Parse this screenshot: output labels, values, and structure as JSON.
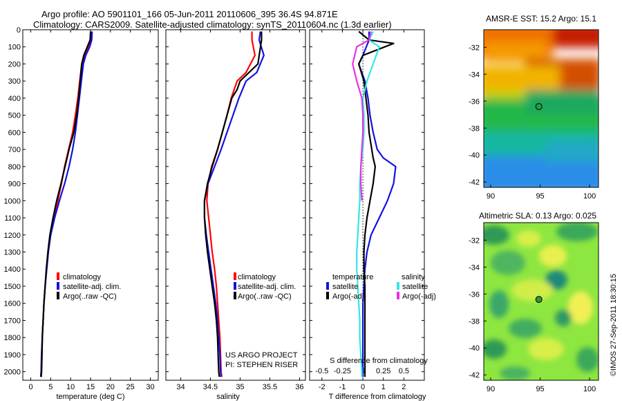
{
  "header": {
    "line1": "Argo profile: AO 5901101_166 05-Jun-2011 20110606_395 36.4S 94.871E",
    "line2": "Climatology: CARS2009. Satellite-adjusted climatology: synTS_20110604.nc (1.3d earlier)"
  },
  "colors": {
    "climatology": "#ff0000",
    "satellite": "#1111dd",
    "argo": "#000000",
    "sal_satellite": "#33e6e6",
    "sal_argo": "#e830e0"
  },
  "side_text": "©IMOS 27-Sep-2011 18:30:15",
  "credit": {
    "line1": "US ARGO PROJECT",
    "line2": "PI: STEPHEN RISER"
  },
  "chart_data": [
    {
      "type": "line",
      "name": "temperature-profile",
      "xlabel": "temperature (deg C)",
      "xlim": [
        -2,
        32
      ],
      "ylim": [
        0,
        2050
      ],
      "xticks": [
        "0",
        "5",
        "10",
        "15",
        "20",
        "25",
        "30"
      ],
      "xtick_values": [
        0,
        5,
        10,
        15,
        20,
        25,
        30
      ],
      "yticks": [
        "0",
        "100",
        "200",
        "300",
        "400",
        "500",
        "600",
        "700",
        "800",
        "900",
        "1000",
        "1100",
        "1200",
        "1300",
        "1400",
        "1500",
        "1600",
        "1700",
        "1800",
        "1900",
        "2000"
      ],
      "ytick_values": [
        0,
        100,
        200,
        300,
        400,
        500,
        600,
        700,
        800,
        900,
        1000,
        1100,
        1200,
        1300,
        1400,
        1500,
        1600,
        1700,
        1800,
        1900,
        2000
      ],
      "legend": [
        "climatology",
        "satellite-adj. clim.",
        "Argo(..raw -QC)"
      ],
      "series": [
        {
          "name": "climatology",
          "color": "#ff0000",
          "x": [
            15.3,
            15.2,
            14.6,
            13.5,
            12.8,
            12.3,
            11.8,
            11.2,
            10.5,
            9.5,
            8.5,
            7.7,
            6.8,
            5.8,
            4.9,
            4.4,
            4.0,
            3.6,
            3.3,
            3.1,
            2.9,
            2.8,
            2.7,
            2.6
          ],
          "y": [
            10,
            60,
            100,
            150,
            200,
            300,
            400,
            500,
            600,
            700,
            800,
            900,
            1000,
            1100,
            1200,
            1300,
            1400,
            1500,
            1600,
            1700,
            1800,
            1900,
            2000,
            2030
          ]
        },
        {
          "name": "satellite-adj. clim.",
          "color": "#1111dd",
          "x": [
            15.4,
            15.3,
            14.8,
            13.8,
            13.2,
            12.7,
            12.2,
            11.7,
            11.2,
            10.5,
            9.6,
            8.5,
            7.2,
            6.0,
            5.0,
            4.4,
            4.0,
            3.6,
            3.3,
            3.1,
            2.9,
            2.7,
            2.6,
            2.5
          ],
          "y": [
            10,
            60,
            100,
            150,
            200,
            300,
            400,
            500,
            600,
            700,
            800,
            900,
            1000,
            1100,
            1200,
            1300,
            1400,
            1500,
            1600,
            1700,
            1800,
            1900,
            2000,
            2030
          ]
        },
        {
          "name": "Argo(..raw -QC)",
          "color": "#000000",
          "x": [
            15.0,
            14.9,
            14.2,
            13.3,
            12.8,
            12.4,
            12.0,
            11.5,
            10.8,
            9.6,
            8.6,
            7.6,
            6.5,
            5.6,
            4.8,
            4.3,
            3.9,
            3.6,
            3.3,
            3.1,
            2.9,
            2.8,
            2.7,
            2.6
          ],
          "y": [
            10,
            60,
            100,
            150,
            200,
            300,
            400,
            500,
            600,
            700,
            800,
            900,
            1000,
            1100,
            1200,
            1300,
            1400,
            1500,
            1600,
            1700,
            1800,
            1900,
            2000,
            2030
          ]
        }
      ]
    },
    {
      "type": "line",
      "name": "salinity-profile",
      "xlabel": "salinity",
      "xlim": [
        33.75,
        36.1
      ],
      "ylim": [
        0,
        2050
      ],
      "xticks": [
        "34",
        "34.5",
        "35",
        "35.5",
        "36"
      ],
      "xtick_values": [
        34,
        34.5,
        35,
        35.5,
        36
      ],
      "legend": [
        "climatology",
        "satellite-adj. clim.",
        "Argo(..raw -QC)"
      ],
      "series": [
        {
          "name": "climatology",
          "color": "#ff0000",
          "x": [
            35.2,
            35.2,
            35.25,
            35.1,
            34.95,
            34.85,
            34.78,
            34.7,
            34.62,
            34.52,
            34.46,
            34.44,
            34.47,
            34.5,
            34.53,
            34.57,
            34.6,
            34.62,
            34.64,
            34.66,
            34.67,
            34.68,
            34.69
          ],
          "y": [
            10,
            60,
            150,
            250,
            300,
            400,
            500,
            600,
            700,
            800,
            900,
            1000,
            1100,
            1200,
            1300,
            1400,
            1500,
            1600,
            1700,
            1800,
            1900,
            2000,
            2030
          ]
        },
        {
          "name": "satellite-adj. clim.",
          "color": "#1111dd",
          "x": [
            35.34,
            35.32,
            35.4,
            35.28,
            35.1,
            34.98,
            34.88,
            34.78,
            34.68,
            34.57,
            34.46,
            34.4,
            34.4,
            34.43,
            34.47,
            34.51,
            34.55,
            34.59,
            34.62,
            34.64,
            34.66,
            34.67,
            34.68
          ],
          "y": [
            10,
            60,
            150,
            250,
            300,
            400,
            500,
            600,
            700,
            800,
            900,
            1000,
            1100,
            1200,
            1300,
            1400,
            1500,
            1600,
            1700,
            1800,
            1900,
            2000,
            2030
          ]
        },
        {
          "name": "Argo(..raw -QC)",
          "color": "#000000",
          "x": [
            35.36,
            35.36,
            35.3,
            35.0,
            34.95,
            34.86,
            34.78,
            34.7,
            34.62,
            34.53,
            34.45,
            34.4,
            34.4,
            34.42,
            34.45,
            34.49,
            34.53,
            34.57,
            34.6,
            34.62,
            34.63,
            34.64,
            34.65
          ],
          "y": [
            10,
            60,
            200,
            300,
            350,
            400,
            500,
            600,
            700,
            800,
            900,
            1000,
            1100,
            1200,
            1300,
            1400,
            1500,
            1600,
            1700,
            1800,
            1900,
            2000,
            2030
          ]
        }
      ]
    },
    {
      "type": "line",
      "name": "difference-profile",
      "xlabel": "T difference from climatology",
      "xlabel2": "S difference from climatology",
      "xlim": [
        -2.6,
        3.0
      ],
      "ylim": [
        0,
        2050
      ],
      "xticks": [
        "-2",
        "-1",
        "0",
        "1",
        "2"
      ],
      "xtick_values": [
        -2,
        -1,
        0,
        1,
        2
      ],
      "xticks2": [
        "-0.5",
        "-0.25",
        "0",
        "0.25",
        "0.5"
      ],
      "xtick2_values": [
        -2,
        -1,
        0,
        1,
        2
      ],
      "legend_titles": [
        "temperature",
        "salinity"
      ],
      "legend": [
        "satellite",
        "Argo(-adj)",
        "satellite",
        "Argo(-adj)"
      ],
      "series": [
        {
          "name": "temperature satellite",
          "color": "#1111dd",
          "x": [
            0.3,
            0.3,
            0.0,
            -0.2,
            0.1,
            0.25,
            0.35,
            0.5,
            0.7,
            1.0,
            1.6,
            1.5,
            1.2,
            0.8,
            0.4,
            0.2,
            0.1,
            0.05,
            0.0,
            0.0,
            0.0,
            0.0,
            0.0
          ],
          "y": [
            10,
            60,
            150,
            200,
            300,
            400,
            500,
            600,
            700,
            750,
            800,
            900,
            1000,
            1100,
            1200,
            1300,
            1400,
            1500,
            1600,
            1700,
            1800,
            1900,
            2030
          ]
        },
        {
          "name": "temperature Argo(-adj)",
          "color": "#000000",
          "x": [
            -0.2,
            0.3,
            1.5,
            0.0,
            -0.2,
            0.05,
            0.15,
            0.25,
            0.3,
            0.5,
            0.6,
            0.5,
            0.35,
            0.2,
            0.1,
            0.05,
            0.05,
            0.1,
            0.1,
            0.1,
            0.1,
            0.1,
            0.1
          ],
          "y": [
            10,
            60,
            80,
            150,
            200,
            300,
            400,
            500,
            600,
            750,
            800,
            900,
            1000,
            1100,
            1200,
            1300,
            1400,
            1500,
            1600,
            1700,
            1800,
            1900,
            2030
          ]
        },
        {
          "name": "salinity satellite",
          "color": "#33e6e6",
          "x": [
            0.5,
            0.3,
            0.8,
            0.5,
            0.2,
            0.0,
            0.05,
            0.05,
            0.0,
            -0.1,
            -0.15,
            -0.15,
            -0.2,
            -0.25,
            -0.3,
            -0.3,
            -0.25,
            -0.2,
            -0.15,
            -0.15,
            -0.1,
            -0.05,
            -0.05
          ],
          "y": [
            10,
            60,
            100,
            200,
            300,
            400,
            500,
            600,
            700,
            800,
            900,
            1000,
            1100,
            1200,
            1300,
            1400,
            1500,
            1600,
            1700,
            1800,
            1900,
            2000,
            2030
          ]
        },
        {
          "name": "salinity Argo(-adj)",
          "color": "#e830e0",
          "x": [
            0.4,
            0.3,
            -0.3,
            -0.5,
            -0.3,
            -0.05,
            0.0,
            0.0,
            -0.05,
            -0.1,
            -0.1,
            -0.05
          ],
          "y": [
            10,
            60,
            100,
            200,
            300,
            400,
            500,
            600,
            700,
            800,
            900,
            1000
          ]
        }
      ]
    },
    {
      "type": "heatmap",
      "name": "sst-map",
      "title": "AMSR-E SST: 15.2 Argo: 15.1",
      "xlim": [
        89.3,
        100.9
      ],
      "ylim": [
        -42.4,
        -30.7
      ],
      "xticks": [
        "90",
        "95",
        "100"
      ],
      "xtick_values": [
        90,
        95,
        100
      ],
      "yticks": [
        "-32",
        "-34",
        "-36",
        "-38",
        "-40",
        "-42"
      ],
      "ytick_values": [
        -32,
        -34,
        -36,
        -38,
        -40,
        -42
      ],
      "marker": {
        "lon": 94.871,
        "lat": -36.4
      }
    },
    {
      "type": "heatmap",
      "name": "sla-map",
      "title": "Altimetric SLA: 0.13 Argo: 0.025",
      "xlim": [
        89.3,
        100.9
      ],
      "ylim": [
        -42.4,
        -30.7
      ],
      "xticks": [
        "90",
        "95",
        "100"
      ],
      "xtick_values": [
        90,
        95,
        100
      ],
      "yticks": [
        "-32",
        "-34",
        "-36",
        "-38",
        "-40",
        "-42"
      ],
      "ytick_values": [
        -32,
        -34,
        -36,
        -38,
        -40,
        -42
      ],
      "marker": {
        "lon": 94.871,
        "lat": -36.4
      }
    }
  ]
}
